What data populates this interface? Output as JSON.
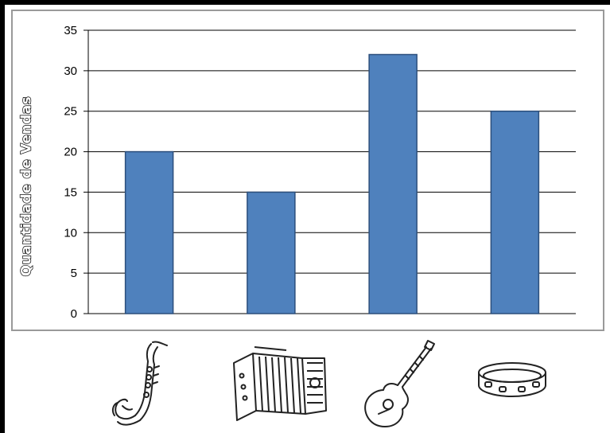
{
  "chart_data": {
    "type": "bar",
    "categories": [
      "saxophone",
      "accordion",
      "guitar",
      "tambourine"
    ],
    "values": [
      20,
      15,
      32,
      25
    ],
    "title": "",
    "xlabel": "",
    "ylabel": "Quantidade de Vendas",
    "ylim": [
      0,
      35
    ],
    "yticks": [
      0,
      5,
      10,
      15,
      20,
      25,
      30,
      35
    ],
    "grid": true,
    "legend": "none",
    "bar_color": "#4f81bd",
    "bar_edge_color": "#2c4f7c"
  },
  "category_icons": [
    "saxophone-icon",
    "accordion-icon",
    "guitar-icon",
    "tambourine-icon"
  ]
}
